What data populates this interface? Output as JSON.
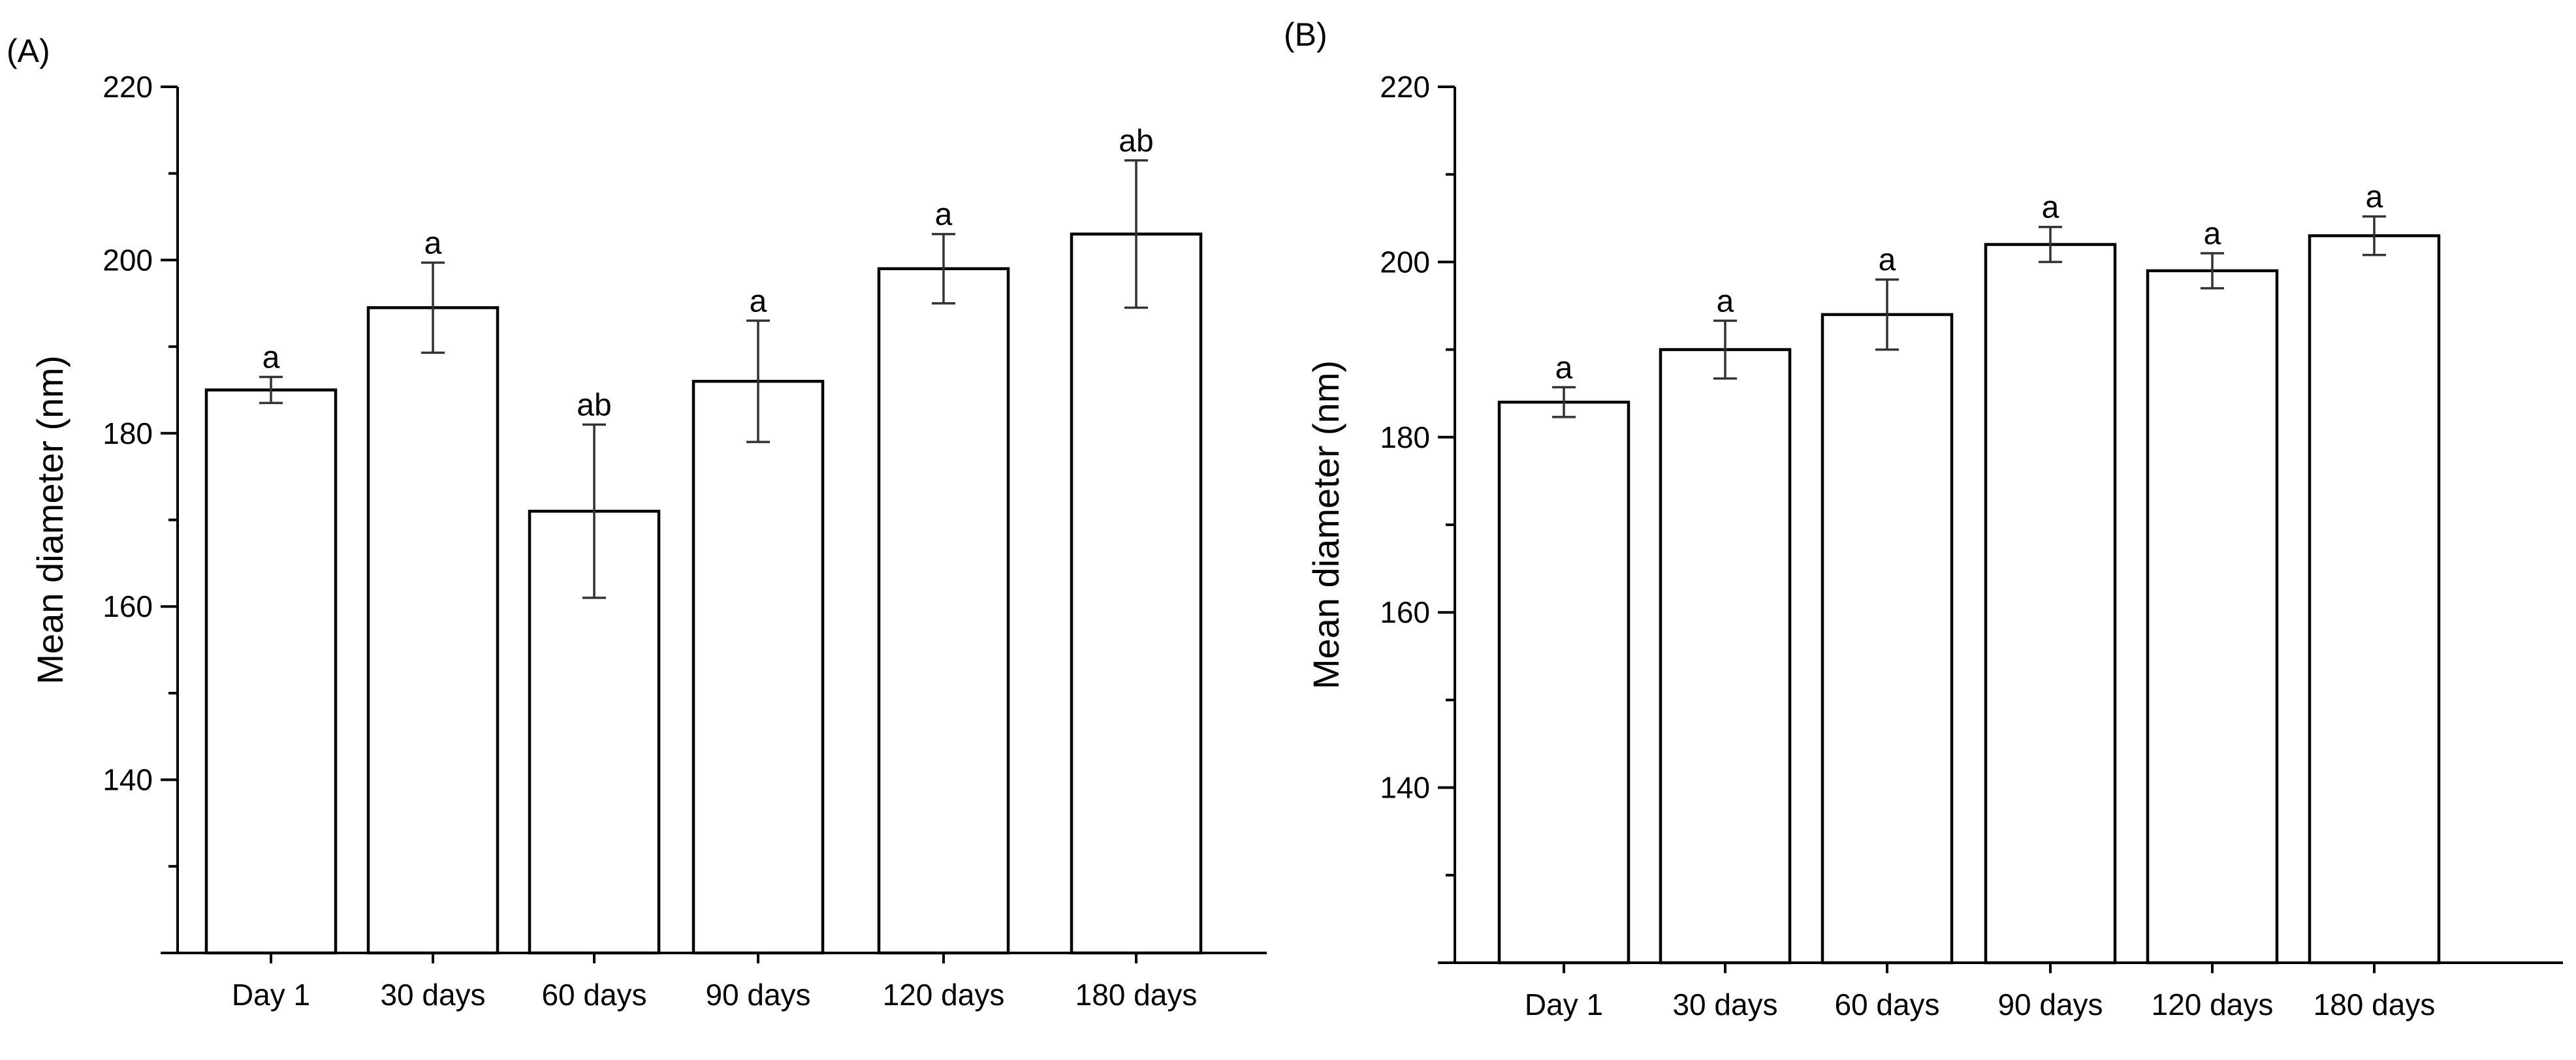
{
  "chart_data": [
    {
      "type": "bar",
      "panel_label": "(A)",
      "ylabel": "Mean diameter (nm)",
      "xlabel": "",
      "ylim": [
        120,
        220
      ],
      "yticks": [
        140,
        160,
        180,
        200,
        220
      ],
      "categories": [
        "Day 1",
        "30 days",
        "60 days",
        "90 days",
        "120 days",
        "180 days"
      ],
      "values": [
        185,
        194.5,
        171,
        186,
        199,
        203
      ],
      "errors": [
        1.5,
        5.2,
        10,
        7,
        4,
        8.5
      ],
      "significance": [
        "a",
        "a",
        "ab",
        "a",
        "a",
        "ab"
      ]
    },
    {
      "type": "bar",
      "panel_label": "(B)",
      "ylabel": "Mean diameter (nm)",
      "xlabel": "",
      "ylim": [
        120,
        220
      ],
      "yticks": [
        140,
        160,
        180,
        200,
        220
      ],
      "categories": [
        "Day 1",
        "30 days",
        "60 days",
        "90 days",
        "120 days",
        "180 days"
      ],
      "values": [
        184,
        190,
        194,
        202,
        199,
        203
      ],
      "errors": [
        1.7,
        3.3,
        4,
        2,
        2,
        2.2
      ],
      "significance": [
        "a",
        "a",
        "a",
        "a",
        "a",
        "a"
      ]
    }
  ]
}
